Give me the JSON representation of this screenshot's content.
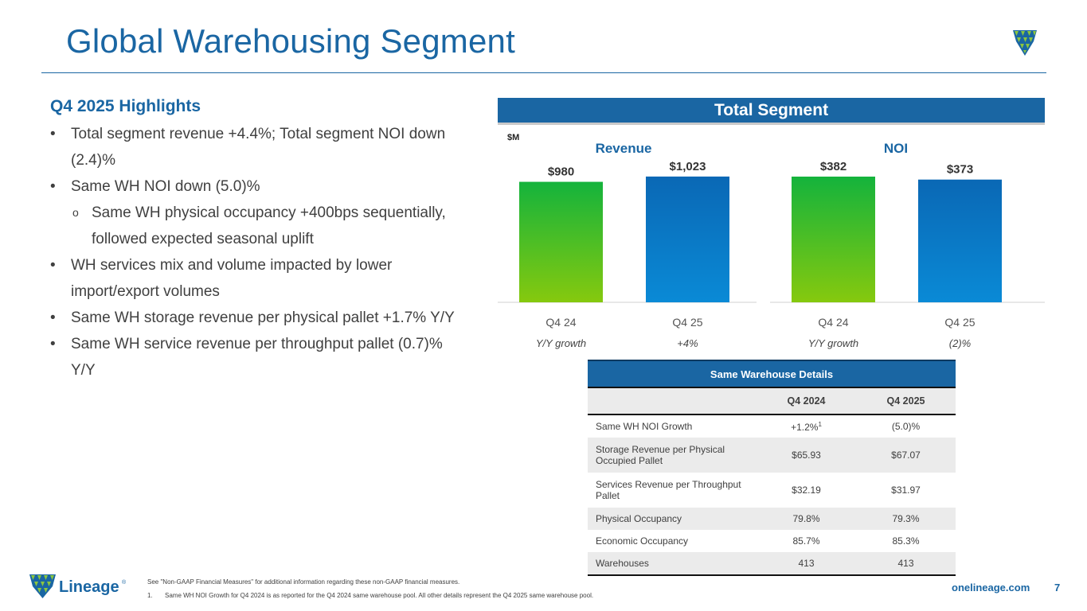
{
  "slide": {
    "title": "Global Warehousing Segment",
    "page_number": "7",
    "website": "onelineage.com",
    "brand_name": "Lineage",
    "brand_mark": "®"
  },
  "colors": {
    "brand_blue": "#1a66a3",
    "bar_green_top": "#14b33c",
    "bar_green_bottom": "#86c90e",
    "bar_blue_top": "#0a68b5",
    "bar_blue_bottom": "#0a8ad6"
  },
  "highlights": {
    "heading": "Q4 2025 Highlights",
    "bullets": [
      {
        "level": 1,
        "marker": "•",
        "lines": [
          "Total segment revenue +4.4%; Total segment NOI down",
          "(2.4)%"
        ]
      },
      {
        "level": 1,
        "marker": "•",
        "lines": [
          "Same WH NOI down (5.0)%"
        ]
      },
      {
        "level": 2,
        "marker": "o",
        "lines": [
          "Same WH physical occupancy +400bps sequentially,",
          "followed expected seasonal uplift"
        ]
      },
      {
        "level": 1,
        "marker": "•",
        "lines": [
          "WH services mix and volume impacted by lower",
          "import/export volumes"
        ]
      },
      {
        "level": 1,
        "marker": "•",
        "lines": [
          "Same WH storage revenue per physical pallet +1.7% Y/Y"
        ]
      },
      {
        "level": 1,
        "marker": "•",
        "lines": [
          "Same WH service revenue per throughput pallet (0.7)%",
          "Y/Y"
        ]
      }
    ]
  },
  "segment_banner": "Total Segment",
  "chart_data": [
    {
      "type": "bar",
      "title": "Revenue",
      "unit_label": "$M",
      "categories": [
        "Q4 24",
        "Q4 25"
      ],
      "values": [
        980,
        1023
      ],
      "data_labels": [
        "$980",
        "$1,023"
      ],
      "growth_label": "Y/Y growth",
      "growth_value": "+4%",
      "ylim": [
        0,
        1100
      ]
    },
    {
      "type": "bar",
      "title": "NOI",
      "categories": [
        "Q4 24",
        "Q4 25"
      ],
      "values": [
        382,
        373
      ],
      "data_labels": [
        "$382",
        "$373"
      ],
      "growth_label": "Y/Y growth",
      "growth_value": "(2)%",
      "ylim": [
        0,
        411
      ]
    }
  ],
  "table": {
    "caption": "Same Warehouse Details",
    "columns": [
      "",
      "Q4 2024",
      "Q4 2025"
    ],
    "rows": [
      {
        "label": "Same WH NOI Growth",
        "q4_2024": "+1.2%",
        "q4_2024_sup": "1",
        "q4_2025": "(5.0)%",
        "shade": false,
        "tall": false
      },
      {
        "label": "Storage Revenue per Physical Occupied Pallet",
        "q4_2024": "$65.93",
        "q4_2024_sup": "",
        "q4_2025": "$67.07",
        "shade": true,
        "tall": true
      },
      {
        "label": "Services Revenue per Throughput Pallet",
        "q4_2024": "$32.19",
        "q4_2024_sup": "",
        "q4_2025": "$31.97",
        "shade": false,
        "tall": true
      },
      {
        "label": "Physical Occupancy",
        "q4_2024": "79.8%",
        "q4_2024_sup": "",
        "q4_2025": "79.3%",
        "shade": true,
        "tall": false
      },
      {
        "label": "Economic Occupancy",
        "q4_2024": "85.7%",
        "q4_2024_sup": "",
        "q4_2025": "85.3%",
        "shade": false,
        "tall": false
      },
      {
        "label": "Warehouses",
        "q4_2024": "413",
        "q4_2024_sup": "",
        "q4_2025": "413",
        "shade": true,
        "tall": false
      }
    ]
  },
  "footnotes": {
    "note": "See \"Non-GAAP Financial Measures\" for additional information regarding these non-GAAP financial measures.",
    "fn1_number": "1.",
    "fn1_text": "Same WH NOI Growth for Q4 2024 is as reported for the Q4 2024 same warehouse pool. All other details represent the Q4 2025 same warehouse pool."
  }
}
